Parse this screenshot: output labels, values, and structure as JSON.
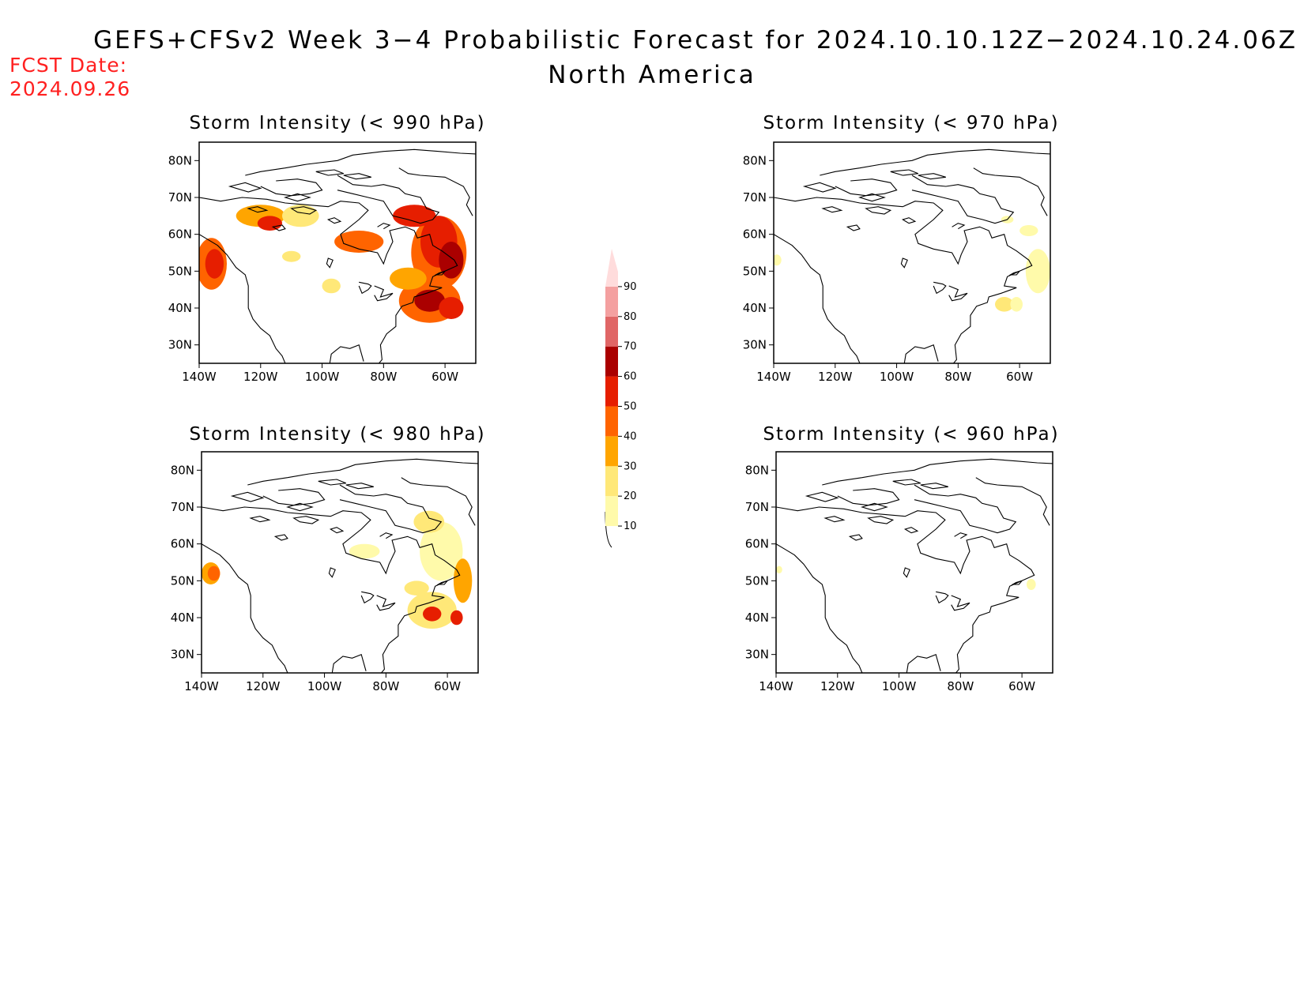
{
  "title_line1": "GEFS+CFSv2 Week 3−4 Probabilistic Forecast for 2024.10.10.12Z−2024.10.24.06Z",
  "title_line2": "North America",
  "fcst_label": "FCST Date:",
  "fcst_date": "2024.09.26",
  "colorbar": {
    "levels": [
      "10",
      "20",
      "30",
      "40",
      "50",
      "60",
      "70",
      "80",
      "90"
    ],
    "colors": [
      "#fffaaa",
      "#ffe878",
      "#ffa500",
      "#ff6400",
      "#e61e00",
      "#aa0000",
      "#e06666",
      "#f4a0a0",
      "#ffdcdc"
    ]
  },
  "panels": [
    {
      "title": "Storm Intensity (< 990 hPa)",
      "lat_labels": [
        "80N",
        "70N",
        "60N",
        "50N",
        "40N",
        "30N"
      ],
      "lon_labels": [
        "140W",
        "120W",
        "100W",
        "80W",
        "60W"
      ],
      "blobs": [
        {
          "lon": -136,
          "lat": 52,
          "rx": 5,
          "ry": 7,
          "c": 3
        },
        {
          "lon": -135,
          "lat": 52,
          "rx": 3,
          "ry": 4,
          "c": 4
        },
        {
          "lon": -120,
          "lat": 65,
          "rx": 8,
          "ry": 3,
          "c": 2
        },
        {
          "lon": -117,
          "lat": 63,
          "rx": 4,
          "ry": 2,
          "c": 4
        },
        {
          "lon": -107,
          "lat": 65,
          "rx": 6,
          "ry": 3,
          "c": 1
        },
        {
          "lon": -88,
          "lat": 58,
          "rx": 8,
          "ry": 3,
          "c": 3
        },
        {
          "lon": -97,
          "lat": 46,
          "rx": 3,
          "ry": 2,
          "c": 1
        },
        {
          "lon": -110,
          "lat": 54,
          "rx": 3,
          "ry": 1.5,
          "c": 1
        },
        {
          "lon": -62,
          "lat": 55,
          "rx": 9,
          "ry": 10,
          "c": 3
        },
        {
          "lon": -62,
          "lat": 58,
          "rx": 6,
          "ry": 7,
          "c": 4
        },
        {
          "lon": -58,
          "lat": 53,
          "rx": 4,
          "ry": 5,
          "c": 5
        },
        {
          "lon": -70,
          "lat": 65,
          "rx": 7,
          "ry": 3,
          "c": 4
        },
        {
          "lon": -65,
          "lat": 42,
          "rx": 10,
          "ry": 6,
          "c": 3
        },
        {
          "lon": -65,
          "lat": 42,
          "rx": 5,
          "ry": 3,
          "c": 5
        },
        {
          "lon": -58,
          "lat": 40,
          "rx": 4,
          "ry": 3,
          "c": 4
        },
        {
          "lon": -72,
          "lat": 48,
          "rx": 6,
          "ry": 3,
          "c": 2
        }
      ]
    },
    {
      "title": "Storm Intensity (< 970 hPa)",
      "lat_labels": [
        "80N",
        "70N",
        "60N",
        "50N",
        "40N",
        "30N"
      ],
      "lon_labels": [
        "140W",
        "120W",
        "100W",
        "80W",
        "60W"
      ],
      "blobs": [
        {
          "lon": -54,
          "lat": 50,
          "rx": 4,
          "ry": 6,
          "c": 0
        },
        {
          "lon": -57,
          "lat": 61,
          "rx": 3,
          "ry": 1.5,
          "c": 0
        },
        {
          "lon": -64,
          "lat": 64,
          "rx": 2,
          "ry": 1,
          "c": 0
        },
        {
          "lon": -65,
          "lat": 41,
          "rx": 3,
          "ry": 2,
          "c": 1
        },
        {
          "lon": -61,
          "lat": 41,
          "rx": 2,
          "ry": 2,
          "c": 0
        },
        {
          "lon": -139,
          "lat": 53,
          "rx": 1.5,
          "ry": 1.5,
          "c": 0
        }
      ]
    },
    {
      "title": "Storm Intensity (< 980 hPa)",
      "lat_labels": [
        "80N",
        "70N",
        "60N",
        "50N",
        "40N",
        "30N"
      ],
      "lon_labels": [
        "140W",
        "120W",
        "100W",
        "80W",
        "60W"
      ],
      "blobs": [
        {
          "lon": -137,
          "lat": 52,
          "rx": 3,
          "ry": 3,
          "c": 2
        },
        {
          "lon": -136,
          "lat": 52,
          "rx": 2,
          "ry": 2,
          "c": 3
        },
        {
          "lon": -62,
          "lat": 58,
          "rx": 7,
          "ry": 8,
          "c": 0
        },
        {
          "lon": -55,
          "lat": 50,
          "rx": 3,
          "ry": 6,
          "c": 2
        },
        {
          "lon": -66,
          "lat": 66,
          "rx": 5,
          "ry": 3,
          "c": 1
        },
        {
          "lon": -65,
          "lat": 42,
          "rx": 8,
          "ry": 5,
          "c": 1
        },
        {
          "lon": -65,
          "lat": 41,
          "rx": 3,
          "ry": 2,
          "c": 4
        },
        {
          "lon": -57,
          "lat": 40,
          "rx": 2,
          "ry": 2,
          "c": 4
        },
        {
          "lon": -87,
          "lat": 58,
          "rx": 5,
          "ry": 2,
          "c": 0
        },
        {
          "lon": -70,
          "lat": 48,
          "rx": 4,
          "ry": 2,
          "c": 1
        }
      ]
    },
    {
      "title": "Storm Intensity (< 960 hPa)",
      "lat_labels": [
        "80N",
        "70N",
        "60N",
        "50N",
        "40N",
        "30N"
      ],
      "lon_labels": [
        "140W",
        "120W",
        "100W",
        "80W",
        "60W"
      ],
      "blobs": [
        {
          "lon": -139,
          "lat": 53,
          "rx": 1,
          "ry": 1,
          "c": 0
        },
        {
          "lon": -57,
          "lat": 49,
          "rx": 1.5,
          "ry": 1.5,
          "c": 0
        }
      ]
    }
  ]
}
